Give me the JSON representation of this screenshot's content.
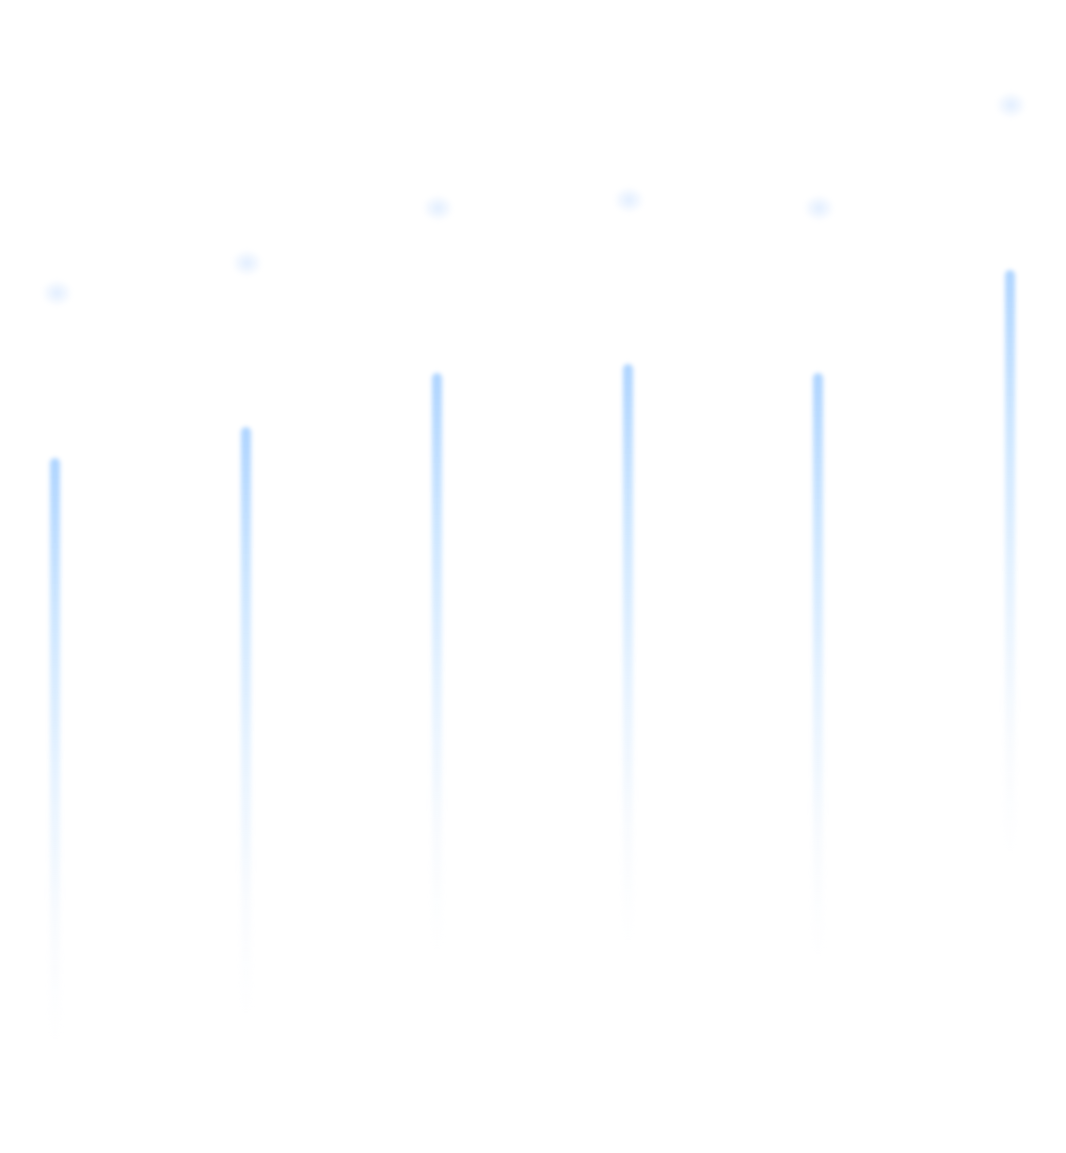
{
  "streaks": [
    {
      "id": "streak-1"
    },
    {
      "id": "streak-2"
    },
    {
      "id": "streak-3"
    },
    {
      "id": "streak-4"
    },
    {
      "id": "streak-5"
    },
    {
      "id": "streak-6"
    }
  ],
  "colors": {
    "background": "#ffffff",
    "streak_head": "#aad2ff",
    "glow": "#d7e8ff"
  }
}
